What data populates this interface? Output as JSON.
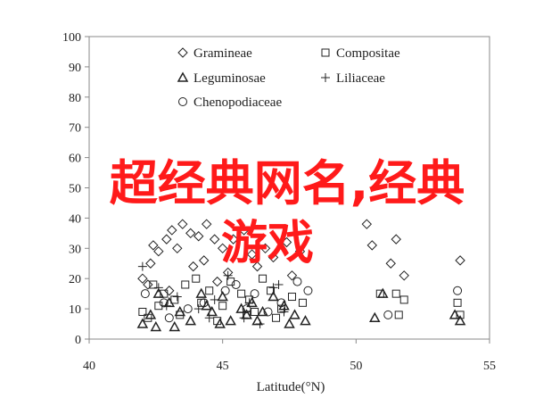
{
  "chart_data": {
    "type": "scatter",
    "xlabel": "Latitude(°N)",
    "ylabel": "",
    "xlim": [
      40,
      55
    ],
    "ylim": [
      0,
      100
    ],
    "xticks": [
      "40",
      "45",
      "50",
      "55"
    ],
    "yticks": [
      "0",
      "10",
      "20",
      "30",
      "40",
      "50",
      "60",
      "70",
      "80",
      "90",
      "100"
    ],
    "legend_placement": "top-center",
    "grid": false,
    "series": [
      {
        "name": "Gramineae",
        "marker": "diamond",
        "points": [
          [
            42.0,
            20
          ],
          [
            42.3,
            25
          ],
          [
            42.6,
            29
          ],
          [
            42.9,
            33
          ],
          [
            43.1,
            36
          ],
          [
            43.5,
            38
          ],
          [
            43.8,
            35
          ],
          [
            42.4,
            31
          ],
          [
            43.3,
            30
          ],
          [
            44.1,
            34
          ],
          [
            44.4,
            38
          ],
          [
            44.7,
            33
          ],
          [
            45.0,
            30
          ],
          [
            45.4,
            33
          ],
          [
            45.8,
            36
          ],
          [
            46.1,
            28
          ],
          [
            46.6,
            30
          ],
          [
            46.9,
            27
          ],
          [
            47.4,
            32
          ],
          [
            47.9,
            29
          ],
          [
            44.3,
            26
          ],
          [
            43.9,
            24
          ],
          [
            45.2,
            22
          ],
          [
            46.3,
            24
          ],
          [
            47.6,
            21
          ],
          [
            50.4,
            38
          ],
          [
            50.6,
            31
          ],
          [
            51.5,
            33
          ],
          [
            51.3,
            25
          ],
          [
            51.8,
            21
          ],
          [
            53.9,
            26
          ],
          [
            42.2,
            18
          ],
          [
            43.0,
            16
          ],
          [
            44.8,
            19
          ]
        ]
      },
      {
        "name": "Compositae",
        "marker": "square",
        "points": [
          [
            42.0,
            9
          ],
          [
            42.4,
            18
          ],
          [
            42.8,
            15
          ],
          [
            43.2,
            13
          ],
          [
            43.6,
            18
          ],
          [
            44.0,
            20
          ],
          [
            44.5,
            16
          ],
          [
            45.0,
            11
          ],
          [
            45.3,
            19
          ],
          [
            45.7,
            15
          ],
          [
            46.0,
            13
          ],
          [
            46.5,
            20
          ],
          [
            46.8,
            16
          ],
          [
            47.2,
            10
          ],
          [
            47.6,
            14
          ],
          [
            48.0,
            12
          ],
          [
            42.6,
            11
          ],
          [
            43.4,
            8
          ],
          [
            44.8,
            6
          ],
          [
            45.9,
            8
          ],
          [
            47.0,
            7
          ],
          [
            50.9,
            15
          ],
          [
            51.5,
            15
          ],
          [
            51.8,
            13
          ],
          [
            51.6,
            8
          ],
          [
            53.8,
            12
          ],
          [
            53.9,
            8
          ],
          [
            42.2,
            7
          ],
          [
            44.2,
            12
          ],
          [
            46.2,
            9
          ]
        ]
      },
      {
        "name": "Leguminosae",
        "marker": "triangle",
        "points": [
          [
            42.0,
            5
          ],
          [
            42.3,
            8
          ],
          [
            42.6,
            15
          ],
          [
            43.0,
            12
          ],
          [
            43.4,
            9
          ],
          [
            43.8,
            6
          ],
          [
            44.2,
            15
          ],
          [
            44.6,
            9
          ],
          [
            45.0,
            14
          ],
          [
            45.3,
            6
          ],
          [
            45.7,
            10
          ],
          [
            46.1,
            12
          ],
          [
            46.5,
            9
          ],
          [
            46.9,
            14
          ],
          [
            47.3,
            11
          ],
          [
            47.7,
            8
          ],
          [
            48.1,
            6
          ],
          [
            42.5,
            4
          ],
          [
            43.2,
            4
          ],
          [
            44.9,
            5
          ],
          [
            46.3,
            6
          ],
          [
            47.5,
            5
          ],
          [
            50.7,
            7
          ],
          [
            51.0,
            15
          ],
          [
            53.7,
            8
          ],
          [
            53.9,
            6
          ],
          [
            44.4,
            11
          ],
          [
            45.9,
            8
          ]
        ]
      },
      {
        "name": "Liliaceae",
        "marker": "plus",
        "points": [
          [
            42.0,
            24
          ],
          [
            42.6,
            17
          ],
          [
            43.3,
            14
          ],
          [
            44.1,
            10
          ],
          [
            44.7,
            13
          ],
          [
            45.2,
            21
          ],
          [
            45.8,
            7
          ],
          [
            46.4,
            5
          ],
          [
            46.9,
            17
          ],
          [
            47.3,
            9
          ],
          [
            46.0,
            12
          ],
          [
            47.1,
            18
          ],
          [
            42.9,
            11
          ],
          [
            44.5,
            7
          ]
        ]
      },
      {
        "name": "Chenopodiaceae",
        "marker": "circle",
        "points": [
          [
            42.1,
            15
          ],
          [
            42.8,
            12
          ],
          [
            43.7,
            10
          ],
          [
            44.3,
            12
          ],
          [
            45.1,
            16
          ],
          [
            45.5,
            18
          ],
          [
            46.2,
            15
          ],
          [
            46.7,
            9
          ],
          [
            47.2,
            12
          ],
          [
            47.8,
            19
          ],
          [
            48.2,
            16
          ],
          [
            51.2,
            8
          ],
          [
            53.8,
            16
          ],
          [
            43.0,
            7
          ],
          [
            45.9,
            10
          ]
        ]
      }
    ]
  },
  "overlay": {
    "line1": "超经典网名,经典",
    "line2": "游戏"
  }
}
